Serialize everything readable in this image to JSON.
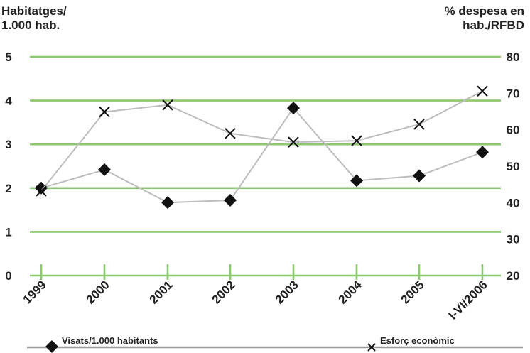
{
  "chart_data": {
    "type": "line",
    "left_axis_title": [
      "Habitatges/",
      "1.000 hab."
    ],
    "right_axis_title": [
      "% despesa en",
      "hab./RFBD"
    ],
    "categories": [
      "1999",
      "2000",
      "2001",
      "2002",
      "2003",
      "2004",
      "2005",
      "I-VI/2006"
    ],
    "y_left": {
      "min": 0,
      "max": 5,
      "ticks": [
        "0",
        "1",
        "2",
        "3",
        "4",
        "5"
      ]
    },
    "y_right": {
      "min": 20,
      "max": 80,
      "ticks": [
        "20",
        "30",
        "40",
        "50",
        "60",
        "70",
        "80"
      ]
    },
    "series": [
      {
        "name": "Visats/1.000 habitants",
        "axis": "left",
        "marker": "diamond",
        "values": [
          2.0,
          2.42,
          1.67,
          1.72,
          3.83,
          2.17,
          2.28,
          2.82
        ]
      },
      {
        "name": "Esforç econòmic",
        "axis": "right",
        "marker": "cross",
        "values": [
          43.2,
          64.9,
          66.8,
          59.0,
          56.6,
          57.0,
          61.5,
          70.6
        ]
      }
    ],
    "grid": true,
    "legend_position": "bottom",
    "colors": {
      "grid": "#8cc96e",
      "line": "#bdbdbd",
      "marker": "#111111",
      "text": "#222222",
      "legend_line": "#999999"
    }
  }
}
